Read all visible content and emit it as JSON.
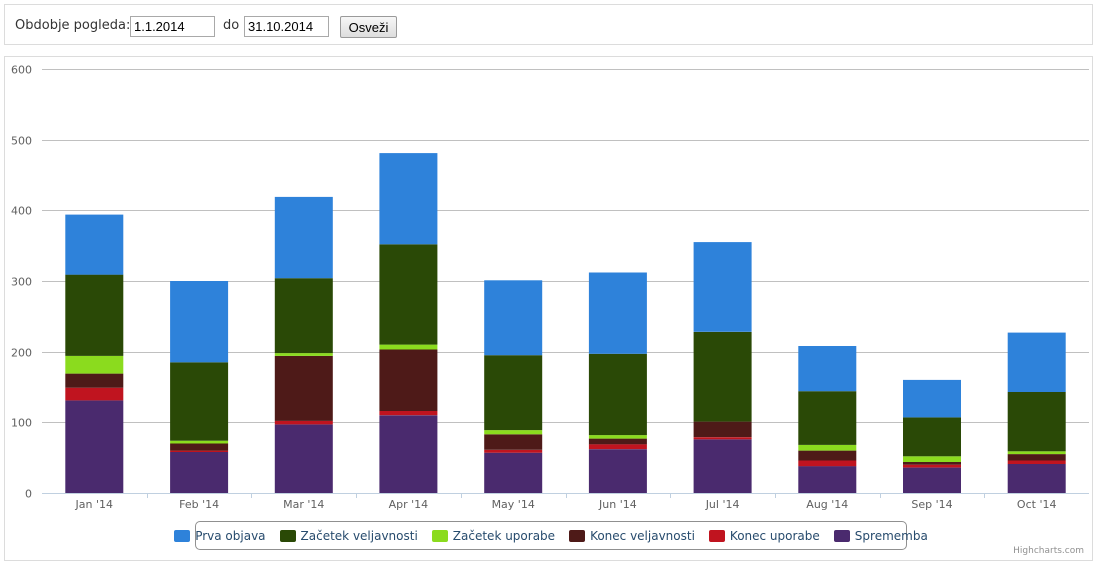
{
  "filter": {
    "period_label": "Obdobje pogleda:",
    "from_value": "1.1.2014",
    "to_label": "do",
    "to_value": "31.10.2014",
    "refresh_label": "Osveži"
  },
  "credits": "Highcharts.com",
  "chart_data": {
    "type": "bar",
    "stacked": true,
    "categories": [
      "Jan '14",
      "Feb '14",
      "Mar '14",
      "Apr '14",
      "May '14",
      "Jun '14",
      "Jul '14",
      "Aug '14",
      "Sep '14",
      "Oct '14"
    ],
    "ylim": [
      0,
      600
    ],
    "yticks": [
      0,
      100,
      200,
      300,
      400,
      500,
      600
    ],
    "grid": true,
    "legend_position": "bottom-center",
    "series": [
      {
        "name": "Sprememba",
        "color": "#4a2a6e",
        "values": [
          131,
          58,
          97,
          110,
          57,
          62,
          76,
          38,
          36,
          41
        ]
      },
      {
        "name": "Konec uporabe",
        "color": "#c0141f",
        "values": [
          18,
          2,
          5,
          6,
          4,
          7,
          3,
          8,
          4,
          5
        ]
      },
      {
        "name": "Konec veljavnosti",
        "color": "#4e1a18",
        "values": [
          20,
          10,
          92,
          87,
          22,
          8,
          22,
          14,
          4,
          9
        ]
      },
      {
        "name": "Začetek uporabe",
        "color": "#8bdb1e",
        "values": [
          25,
          4,
          4,
          7,
          6,
          5,
          0,
          8,
          8,
          4
        ]
      },
      {
        "name": "Začetek veljavnosti",
        "color": "#2a4906",
        "values": [
          115,
          111,
          106,
          142,
          106,
          115,
          127,
          76,
          55,
          84
        ]
      },
      {
        "name": "Prva objava",
        "color": "#2e82da",
        "values": [
          85,
          115,
          115,
          129,
          106,
          115,
          127,
          64,
          53,
          84
        ]
      }
    ]
  }
}
